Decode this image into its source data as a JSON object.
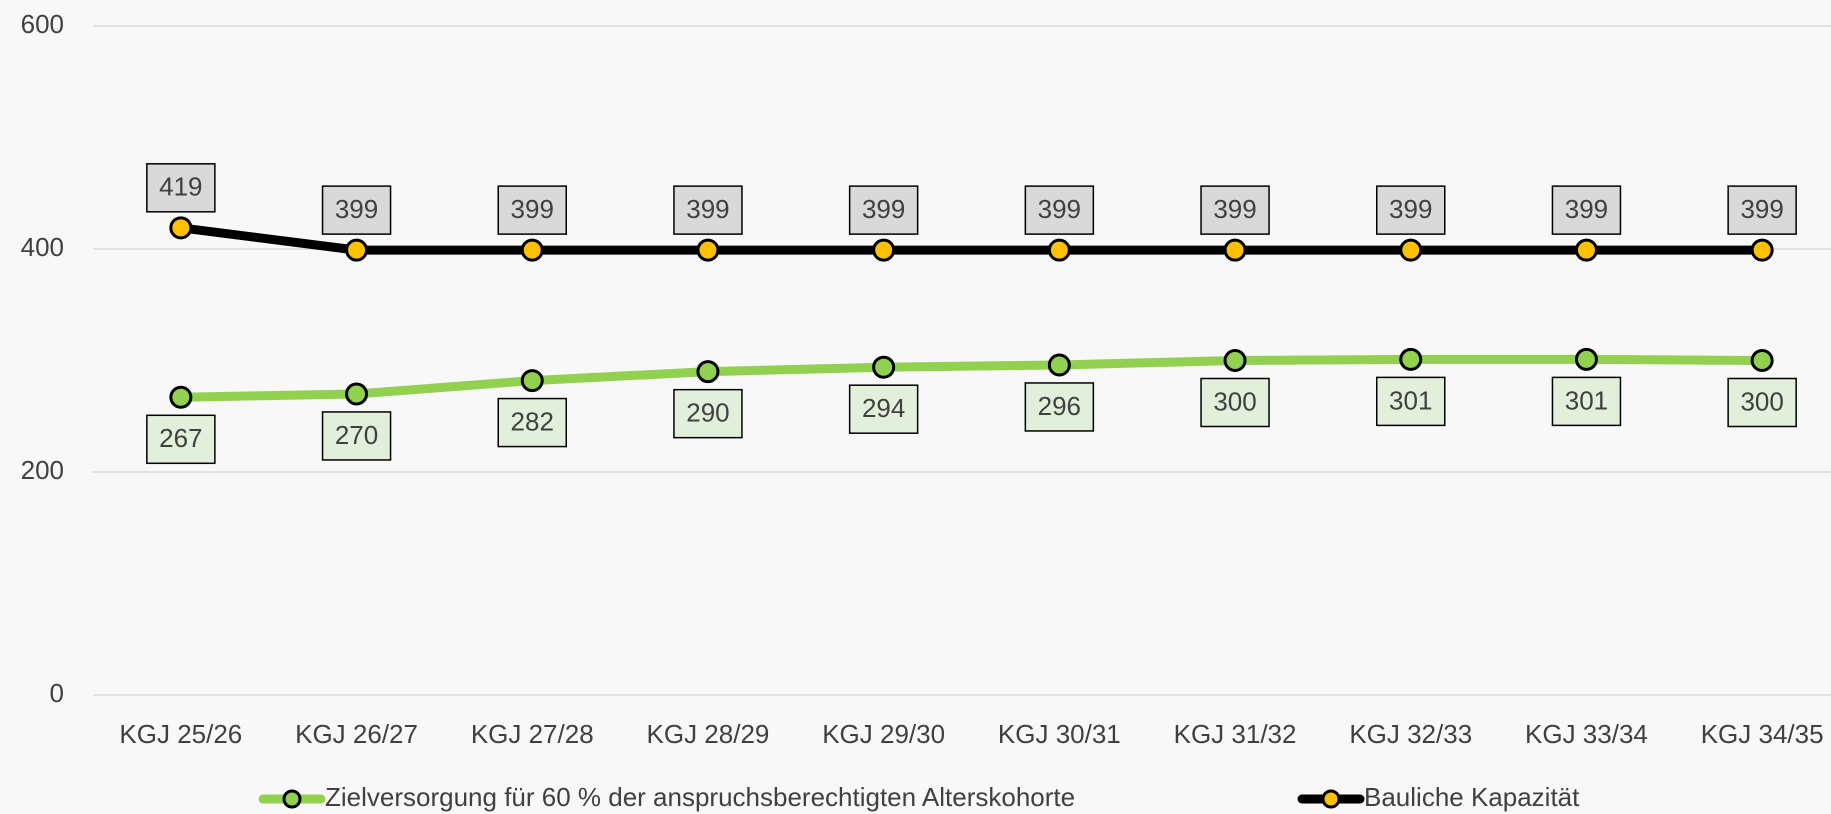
{
  "chart_data": {
    "type": "line",
    "categories": [
      "KGJ 25/26",
      "KGJ 26/27",
      "KGJ 27/28",
      "KGJ 28/29",
      "KGJ 29/30",
      "KGJ 30/31",
      "KGJ 31/32",
      "KGJ 32/33",
      "KGJ 33/34",
      "KGJ 34/35"
    ],
    "series": [
      {
        "name": "Zielversorgung für 60 % der anspruchsberechtigten Alterskohorte",
        "color": "#92d050",
        "marker_color": "#92d050",
        "label_fill": "#e2efda",
        "label_position": "below",
        "values": [
          267,
          270,
          282,
          290,
          294,
          296,
          300,
          301,
          301,
          300
        ]
      },
      {
        "name": "Bauliche Kapazität",
        "color": "#000000",
        "marker_color": "#ffc000",
        "label_fill": "#d9d9d9",
        "label_position": "above",
        "values": [
          419,
          399,
          399,
          399,
          399,
          399,
          399,
          399,
          399,
          399
        ]
      }
    ],
    "ylim": [
      0,
      600
    ],
    "yticks": [
      0,
      200,
      400,
      600
    ],
    "grid": true,
    "legend": "bottom"
  }
}
